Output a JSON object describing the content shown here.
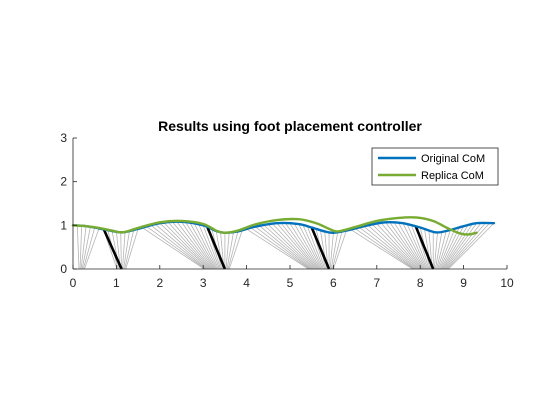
{
  "chart_data": {
    "type": "line",
    "title": "Results using foot placement controller",
    "xlabel": "",
    "ylabel": "",
    "xlim": [
      0,
      10
    ],
    "ylim": [
      0,
      3
    ],
    "xticks": [
      "0",
      "1",
      "2",
      "3",
      "4",
      "5",
      "6",
      "7",
      "8",
      "9",
      "10"
    ],
    "yticks": [
      "0",
      "1",
      "2",
      "3"
    ],
    "grid": false,
    "legend_position": "top-right",
    "series": [
      {
        "name": "Original CoM",
        "color": "#0072BD",
        "x": [
          0.0,
          0.3,
          0.6,
          0.9,
          1.15,
          1.5,
          2.0,
          2.5,
          3.0,
          3.3,
          3.5,
          3.8,
          4.2,
          4.7,
          5.2,
          5.5,
          5.8,
          6.0,
          6.3,
          6.8,
          7.2,
          7.6,
          8.0,
          8.35,
          8.6,
          9.0,
          9.3,
          9.7
        ],
        "y": [
          1.0,
          0.98,
          0.93,
          0.87,
          0.84,
          0.92,
          1.05,
          1.08,
          1.0,
          0.87,
          0.83,
          0.86,
          0.97,
          1.05,
          1.03,
          0.95,
          0.86,
          0.83,
          0.88,
          1.0,
          1.07,
          1.05,
          0.95,
          0.84,
          0.87,
          0.98,
          1.05,
          1.05
        ]
      },
      {
        "name": "Replica CoM",
        "color": "#77AC30",
        "x": [
          0.0,
          0.3,
          0.6,
          0.9,
          1.15,
          1.5,
          2.0,
          2.5,
          3.0,
          3.3,
          3.5,
          3.8,
          4.2,
          4.7,
          5.2,
          5.6,
          5.9,
          6.1,
          6.5,
          7.0,
          7.5,
          7.9,
          8.3,
          8.6,
          8.9,
          9.1,
          9.3
        ],
        "y": [
          1.0,
          0.98,
          0.94,
          0.88,
          0.84,
          0.94,
          1.07,
          1.1,
          1.03,
          0.88,
          0.83,
          0.88,
          1.02,
          1.12,
          1.14,
          1.05,
          0.92,
          0.86,
          0.96,
          1.1,
          1.17,
          1.18,
          1.1,
          0.95,
          0.82,
          0.79,
          0.83
        ]
      }
    ],
    "stance_legs": [
      {
        "foot_x": 1.12,
        "hip_x": 0.7,
        "hip_y": 0.93
      },
      {
        "foot_x": 3.5,
        "hip_x": 3.1,
        "hip_y": 0.95
      },
      {
        "foot_x": 5.9,
        "hip_x": 5.5,
        "hip_y": 0.95
      },
      {
        "foot_x": 8.3,
        "hip_x": 7.9,
        "hip_y": 0.97
      }
    ],
    "leg_trace_color": "#B4B4B4",
    "stance_leg_color": "#000000"
  }
}
